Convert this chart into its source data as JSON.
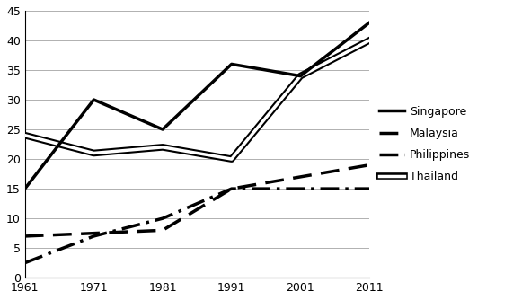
{
  "years": [
    1961,
    1971,
    1981,
    1991,
    2001,
    2011
  ],
  "singapore": [
    15,
    30,
    25,
    36,
    34,
    43
  ],
  "malaysia": [
    7,
    7.5,
    8,
    15,
    17,
    19
  ],
  "philippines": [
    2.5,
    7,
    10,
    15,
    15,
    15
  ],
  "thailand": [
    24,
    21,
    22,
    20,
    34,
    40
  ],
  "legend_labels": [
    "Singapore",
    "Malaysia",
    "Philippines",
    "Thailand"
  ],
  "ylim": [
    0,
    45
  ],
  "yticks": [
    0,
    5,
    10,
    15,
    20,
    25,
    30,
    35,
    40,
    45
  ],
  "xticks": [
    1961,
    1971,
    1981,
    1991,
    2001,
    2011
  ],
  "bg_color": "#ffffff",
  "line_color": "#000000",
  "grid_color": "#b0b0b0"
}
